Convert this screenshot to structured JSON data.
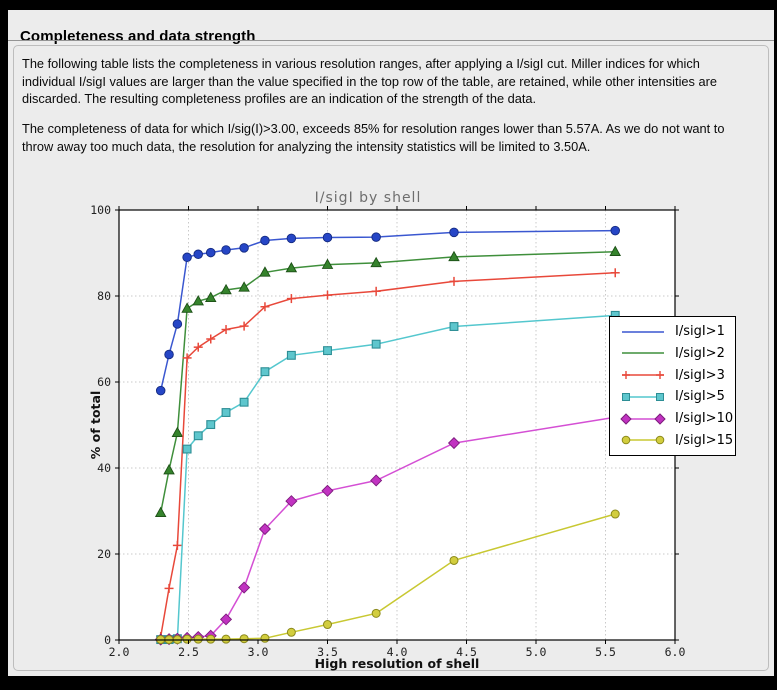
{
  "page": {
    "title": "Completeness and data strength",
    "intro": "The following table lists the completeness in various resolution ranges, after applying a I/sigI cut. Miller indices for which individual I/sigI values are larger than the value specified in the top row of the table, are retained, while other intensities are discarded. The resulting completeness profiles are an indication of the strength of the data.",
    "conclusion": "The completeness of data for which I/sig(I)>3.00, exceeds  85% for resolution ranges lower than 5.57A. As we do not want to throw away too much data, the resolution for analyzing the intensity statistics will be limited to 3.50A."
  },
  "chart_data": {
    "type": "line",
    "title": "I/sigI by shell",
    "xlabel": "High resolution of shell",
    "ylabel": "% of total",
    "xlim": [
      2.0,
      6.0
    ],
    "ylim": [
      0,
      100
    ],
    "xticks": [
      2.0,
      2.5,
      3.0,
      3.5,
      4.0,
      4.5,
      5.0,
      5.5,
      6.0
    ],
    "xtick_labels": [
      "2.0",
      "2.5",
      "3.0",
      "3.5",
      "4.0",
      "4.5",
      "5.0",
      "5.5",
      "6.0"
    ],
    "yticks": [
      0,
      20,
      40,
      60,
      80,
      100
    ],
    "ytick_labels": [
      "0",
      "20",
      "40",
      "60",
      "80",
      "100"
    ],
    "grid": true,
    "legend_position": "upper-right-overlapping",
    "x": [
      2.3,
      2.36,
      2.42,
      2.49,
      2.57,
      2.66,
      2.77,
      2.9,
      3.05,
      3.24,
      3.5,
      3.85,
      4.41,
      5.57
    ],
    "series": [
      {
        "name": "I/sigI>1",
        "marker": "circle",
        "marker_in_legend": false,
        "line_color": "#3a57d0",
        "fill": "#2646c6",
        "edge": "#142a80",
        "values": [
          58.0,
          66.4,
          73.5,
          89.0,
          89.7,
          90.1,
          90.7,
          91.2,
          92.9,
          93.4,
          93.6,
          93.7,
          94.8,
          95.2
        ]
      },
      {
        "name": "I/sigI>2",
        "marker": "triangle",
        "marker_in_legend": false,
        "line_color": "#3f8f3b",
        "fill": "#35832c",
        "edge": "#1c4f16",
        "values": [
          29.6,
          39.5,
          48.2,
          77.1,
          78.8,
          79.6,
          81.4,
          82.0,
          85.5,
          86.5,
          87.3,
          87.7,
          89.1,
          90.3
        ]
      },
      {
        "name": "I/sigI>3",
        "marker": "plus",
        "marker_in_legend": true,
        "line_color": "#e8483a",
        "fill": "#e8483a",
        "edge": "#e8483a",
        "values": [
          0.8,
          12.0,
          22.0,
          65.6,
          68.1,
          70.0,
          72.2,
          73.0,
          77.5,
          79.4,
          80.2,
          81.1,
          83.4,
          85.4
        ]
      },
      {
        "name": "I/sigI>5",
        "marker": "square",
        "marker_in_legend": true,
        "line_color": "#54c7ce",
        "fill": "#5ec6cd",
        "edge": "#2d8e95",
        "values": [
          0.1,
          0.1,
          0.3,
          44.4,
          47.5,
          50.1,
          52.9,
          55.3,
          62.4,
          66.2,
          67.3,
          68.8,
          72.9,
          75.5
        ]
      },
      {
        "name": "I/sigI>10",
        "marker": "diamond",
        "marker_in_legend": true,
        "line_color": "#d44fd4",
        "fill": "#c133c1",
        "edge": "#7c1b7c",
        "values": [
          0.1,
          0.2,
          0.3,
          0.5,
          0.7,
          1.0,
          4.8,
          12.2,
          25.8,
          32.3,
          34.7,
          37.1,
          45.8,
          51.8
        ]
      },
      {
        "name": "I/sigI>15",
        "marker": "circle-small",
        "marker_in_legend": true,
        "line_color": "#c8c832",
        "fill": "#d2cd3e",
        "edge": "#8b891c",
        "values": [
          0.1,
          0.1,
          0.1,
          0.2,
          0.2,
          0.2,
          0.2,
          0.3,
          0.4,
          1.8,
          3.6,
          6.2,
          18.5,
          29.3
        ]
      }
    ],
    "style": {
      "plot_bg": "#ffffff",
      "page_bg": "#ececec",
      "grid_color": "#c9c9c9",
      "frame_color": "#000000",
      "title_color": "#6e6e6e",
      "tick_color": "#222222"
    }
  }
}
